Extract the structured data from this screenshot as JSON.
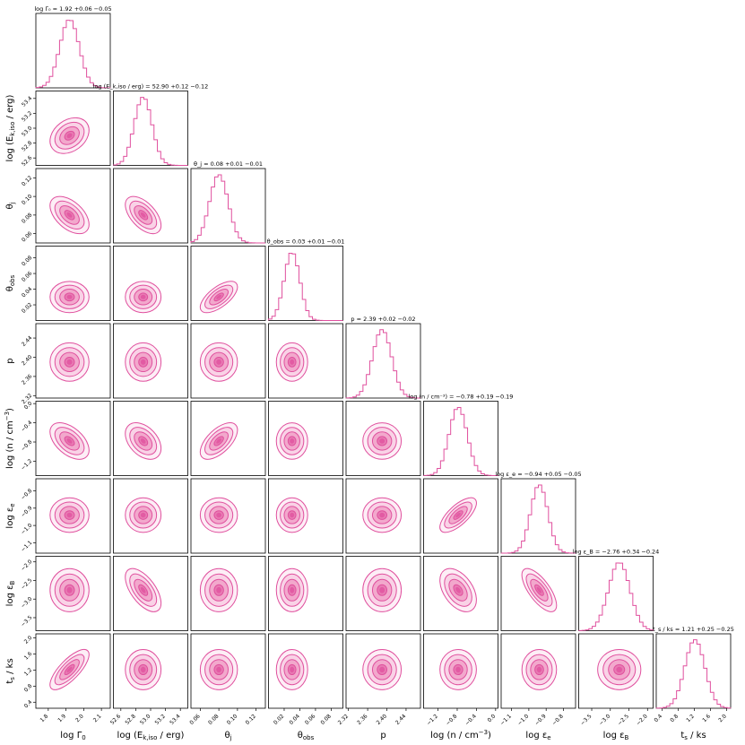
{
  "chart_data": {
    "type": "corner",
    "color": "#e0509e",
    "parameters": [
      {
        "id": "log_gamma0",
        "label": "log Γ",
        "label_sub": "0",
        "ticks": [
          "1.8",
          "1.9",
          "2.0",
          "2.1"
        ],
        "range": [
          1.73,
          2.15
        ],
        "median": 1.92,
        "upper": 0.06,
        "lower": 0.05,
        "title": "log Γ₀ = 1.92 +0.06 −0.05"
      },
      {
        "id": "log_ek_iso",
        "label": "log (E",
        "label_sub": "k,iso",
        "label_tail": " / erg)",
        "ticks": [
          "52.6",
          "52.8",
          "53.0",
          "53.2",
          "53.4"
        ],
        "range": [
          52.5,
          53.5
        ],
        "median": 52.9,
        "upper": 0.12,
        "lower": 0.12,
        "title": "log (E_k,iso / erg) = 52.90 +0.12 −0.12"
      },
      {
        "id": "theta_j",
        "label": "θ",
        "label_sub": "j",
        "ticks": [
          "0.06",
          "0.08",
          "0.10",
          "0.12"
        ],
        "range": [
          0.05,
          0.13
        ],
        "median": 0.08,
        "upper": 0.01,
        "lower": 0.01,
        "title": "θ_j = 0.08 +0.01 −0.01"
      },
      {
        "id": "theta_obs",
        "label": "θ",
        "label_sub": "obs",
        "ticks": [
          "0.02",
          "0.04",
          "0.06",
          "0.08"
        ],
        "range": [
          0.0,
          0.095
        ],
        "median": 0.03,
        "upper": 0.01,
        "lower": 0.01,
        "title": "θ_obs = 0.03 +0.01 −0.01"
      },
      {
        "id": "p",
        "label": "p",
        "label_sub": "",
        "ticks": [
          "2.32",
          "2.36",
          "2.40",
          "2.44"
        ],
        "range": [
          2.315,
          2.47
        ],
        "median": 2.39,
        "upper": 0.02,
        "lower": 0.02,
        "title": "p = 2.39 +0.02 −0.02"
      },
      {
        "id": "log_n",
        "label": "log (n / cm",
        "label_sup": "−3",
        "label_tail": ")",
        "ticks": [
          "−1.2",
          "−0.8",
          "−0.4",
          "0.0"
        ],
        "range": [
          -1.5,
          0.05
        ],
        "median": -0.78,
        "upper": 0.19,
        "lower": 0.19,
        "title": "log (n / cm⁻³) = −0.78 +0.19 −0.19"
      },
      {
        "id": "log_eps_e",
        "label": "log ε",
        "label_sub": "e",
        "ticks": [
          "−1.1",
          "−1.0",
          "−0.9",
          "−0.8"
        ],
        "range": [
          -1.16,
          -0.73
        ],
        "median": -0.94,
        "upper": 0.05,
        "lower": 0.05,
        "title": "log ε_e = −0.94 +0.05 −0.05"
      },
      {
        "id": "log_eps_b",
        "label": "log ε",
        "label_sub": "B",
        "ticks": [
          "−3.5",
          "−3.0",
          "−2.5",
          "−2.0"
        ],
        "range": [
          -3.85,
          -1.85
        ],
        "median": -2.76,
        "upper": 0.34,
        "lower": 0.24,
        "title": "log ε_B = −2.76 +0.34 −0.24"
      },
      {
        "id": "t_s",
        "label": "t",
        "label_sub": "s",
        "label_tail": " / ks",
        "ticks": [
          "0.4",
          "0.8",
          "1.2",
          "1.6",
          "2.0"
        ],
        "range": [
          0.25,
          2.1
        ],
        "median": 1.21,
        "upper": 0.25,
        "lower": 0.25,
        "title": "t_s / ks = 1.21 +0.25 −0.25"
      }
    ],
    "correlations": {
      "log_ek_iso|log_gamma0": 0.3,
      "theta_j|log_gamma0": -0.5,
      "theta_j|log_ek_iso": -0.55,
      "theta_obs|theta_j": 0.65,
      "log_n|log_gamma0": -0.5,
      "log_n|log_ek_iso": -0.4,
      "log_n|theta_j": 0.6,
      "log_eps_e|log_n": 0.7,
      "log_eps_b|log_ek_iso": -0.6,
      "log_eps_b|log_n": -0.45,
      "log_eps_b|log_eps_e": -0.7,
      "t_s|log_gamma0": 0.75
    },
    "contour_levels_sigma": [
      0.5,
      1.0,
      1.5,
      2.0
    ],
    "grid": false,
    "legend": "none"
  }
}
